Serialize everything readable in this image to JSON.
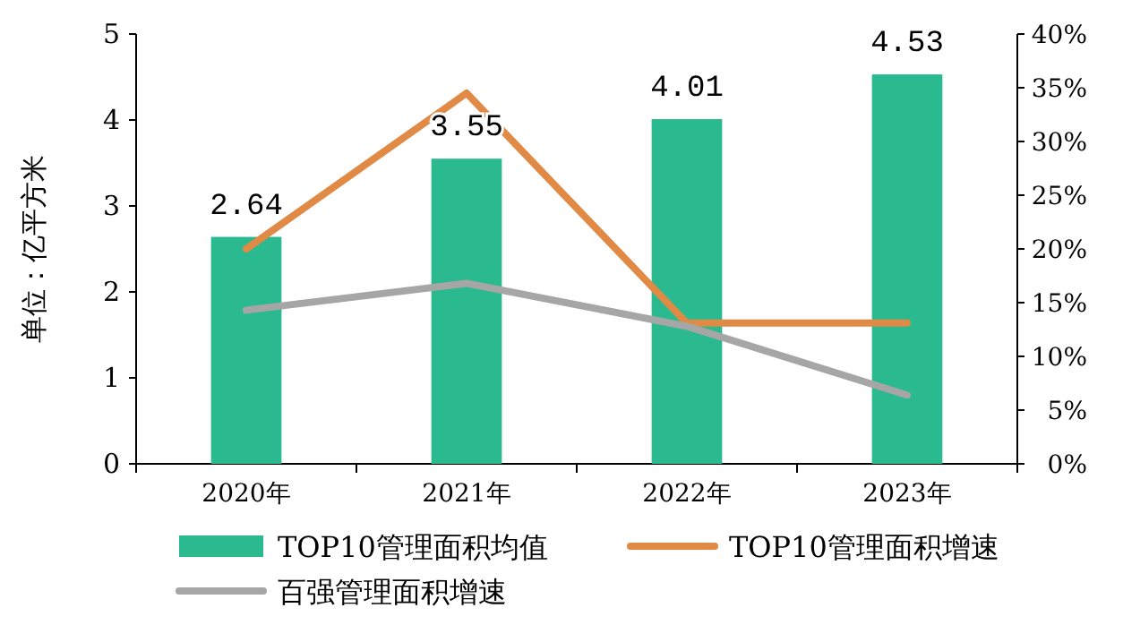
{
  "chart_data": {
    "type": "bar",
    "ylabel": "单位：亿平方米",
    "categories": [
      "2020年",
      "2021年",
      "2022年",
      "2023年"
    ],
    "series": [
      {
        "name": "TOP10管理面积均值",
        "color": "#2bb98f",
        "values": [
          2.64,
          3.55,
          4.01,
          4.53
        ],
        "value_labels": [
          "2.64",
          "3.55",
          "4.01",
          "4.53"
        ]
      },
      {
        "name": "TOP10管理面积增速",
        "type": "line",
        "axis": "y2",
        "color": "#e08a45",
        "values": [
          20.0,
          34.5,
          13.1,
          13.1
        ]
      },
      {
        "name": "百强管理面积增速",
        "type": "line",
        "axis": "y2",
        "color": "#a6a6a6",
        "values": [
          14.3,
          16.8,
          12.8,
          6.4
        ]
      }
    ],
    "ylim": [
      0,
      5
    ],
    "yticks": [
      0,
      1,
      2,
      3,
      4,
      5
    ],
    "y2lim": [
      0,
      40
    ],
    "y2ticks": [
      {
        "value": 0,
        "label": "0%"
      },
      {
        "value": 5,
        "label": "5%"
      },
      {
        "value": 10,
        "label": "10%"
      },
      {
        "value": 15,
        "label": "15%"
      },
      {
        "value": 20,
        "label": "20%"
      },
      {
        "value": 25,
        "label": "25%"
      },
      {
        "value": 30,
        "label": "30%"
      },
      {
        "value": 35,
        "label": "35%"
      },
      {
        "value": 40,
        "label": "40%"
      }
    ],
    "legend": "bottom",
    "grid": false,
    "marker": "none",
    "line_style": "solid"
  }
}
